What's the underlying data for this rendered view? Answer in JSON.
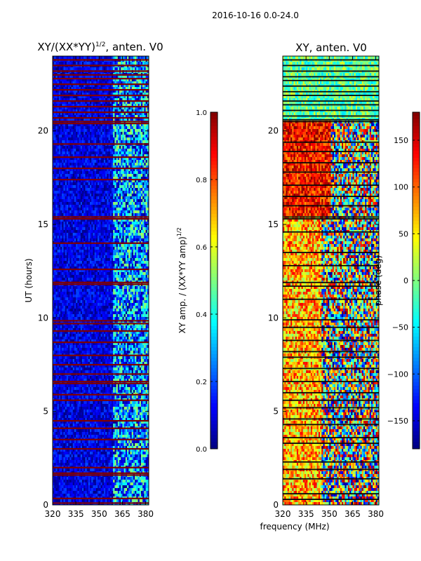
{
  "figure": {
    "suptitle": "2016-10-16 0.0-24.0",
    "shared_xlabel": "frequency (MHz)"
  },
  "colors": {
    "jet": [
      "#00007f",
      "#0000ff",
      "#007fff",
      "#00ffff",
      "#7fff7f",
      "#ffff00",
      "#ff7f00",
      "#ff0000",
      "#7f0000"
    ],
    "gap_row_dark": "#800000",
    "gap_row_black": "#0a0a0a"
  },
  "chart_data": [
    {
      "type": "heatmap",
      "id": "amp",
      "title": "XY/(XX*YY)^(1/2), anten. V0",
      "title_main": "XY/(XX*YY)",
      "title_sup": "1/2",
      "title_tail": ", anten. V0",
      "xlabel": "",
      "ylabel": "UT (hours)",
      "xlim": [
        320,
        382
      ],
      "ylim": [
        0,
        24
      ],
      "xticks": [
        320,
        335,
        350,
        365,
        380
      ],
      "yticks": [
        0,
        5,
        10,
        15,
        20
      ],
      "colorbar": {
        "label": "XY amp. / (XX*YY amp)^(1/2)",
        "label_main": "XY amp. / (XX*YY amp)",
        "label_sup": "1/2",
        "range": [
          0.0,
          1.0
        ],
        "ticks": [
          0.0,
          0.2,
          0.4,
          0.6,
          0.8,
          1.0
        ],
        "tick_labels": [
          "0.0",
          "0.2",
          "0.4",
          "0.6",
          "0.8",
          "1.0"
        ]
      },
      "gap_rows_hours": [
        0.1,
        0.35,
        1.6,
        1.7,
        2.0,
        3.0,
        3.5,
        4.1,
        4.5,
        5.6,
        5.9,
        6.5,
        6.6,
        7.0,
        7.5,
        8.0,
        8.7,
        9.3,
        9.7,
        9.85,
        11.8,
        11.9,
        12.6,
        14.0,
        15.3,
        15.4,
        17.4,
        18.0,
        18.6,
        19.3,
        20.4,
        20.5,
        20.7,
        21.0,
        21.3,
        21.6,
        21.9,
        22.2,
        22.5,
        22.8,
        23.0,
        23.2,
        23.5,
        23.8
      ],
      "data_segments": [
        {
          "x_range": [
            320,
            359
          ],
          "value_range": [
            0.0,
            0.2
          ]
        },
        {
          "x_range": [
            359,
            382
          ],
          "value_range": [
            0.0,
            0.55
          ]
        }
      ]
    },
    {
      "type": "heatmap",
      "id": "phase",
      "title": "XY, anten. V0",
      "xlabel": "frequency (MHz)",
      "ylabel": "",
      "xlim": [
        320,
        382
      ],
      "ylim": [
        0,
        24
      ],
      "xticks": [
        320,
        335,
        350,
        365,
        380
      ],
      "yticks": [
        0,
        5,
        10,
        15,
        20
      ],
      "colorbar": {
        "label": "phase (deg)",
        "range": [
          -180,
          180
        ],
        "ticks": [
          -150,
          -100,
          -50,
          0,
          50,
          100,
          150
        ],
        "tick_labels": [
          "−150",
          "−100",
          "−50",
          "0",
          "50",
          "100",
          "150"
        ]
      },
      "dark_rows_hours": [
        0.3,
        0.6,
        1.4,
        1.9,
        2.3,
        3.3,
        3.6,
        4.3,
        4.6,
        5.2,
        5.6,
        6.0,
        6.6,
        7.3,
        7.9,
        8.2,
        8.8,
        9.5,
        9.9,
        11.0,
        11.7,
        11.9,
        12.8,
        13.5,
        14.6,
        15.3,
        15.4,
        16.0,
        16.5,
        17.1,
        17.8,
        18.3,
        18.9,
        19.4,
        20.5,
        20.6,
        20.8,
        21.1,
        21.4,
        21.6,
        21.9,
        22.1,
        22.4,
        22.7,
        22.9,
        23.2,
        23.5,
        23.8
      ],
      "regions": [
        {
          "x_range": [
            320,
            351
          ],
          "y_range": [
            15.5,
            20.5
          ],
          "phase_range": [
            80,
            180
          ]
        },
        {
          "x_range": [
            351,
            382
          ],
          "y_range": [
            15.5,
            20.5
          ],
          "phase_range": [
            -180,
            180
          ]
        },
        {
          "x_range": [
            320,
            345
          ],
          "y_range": [
            0,
            15.5
          ],
          "phase_range": [
            0,
            140
          ]
        },
        {
          "x_range": [
            345,
            382
          ],
          "y_range": [
            0,
            15.5
          ],
          "phase_range": [
            -180,
            180
          ]
        },
        {
          "x_range": [
            320,
            382
          ],
          "y_range": [
            20.5,
            24
          ],
          "phase_range": [
            -60,
            40
          ]
        }
      ]
    }
  ]
}
